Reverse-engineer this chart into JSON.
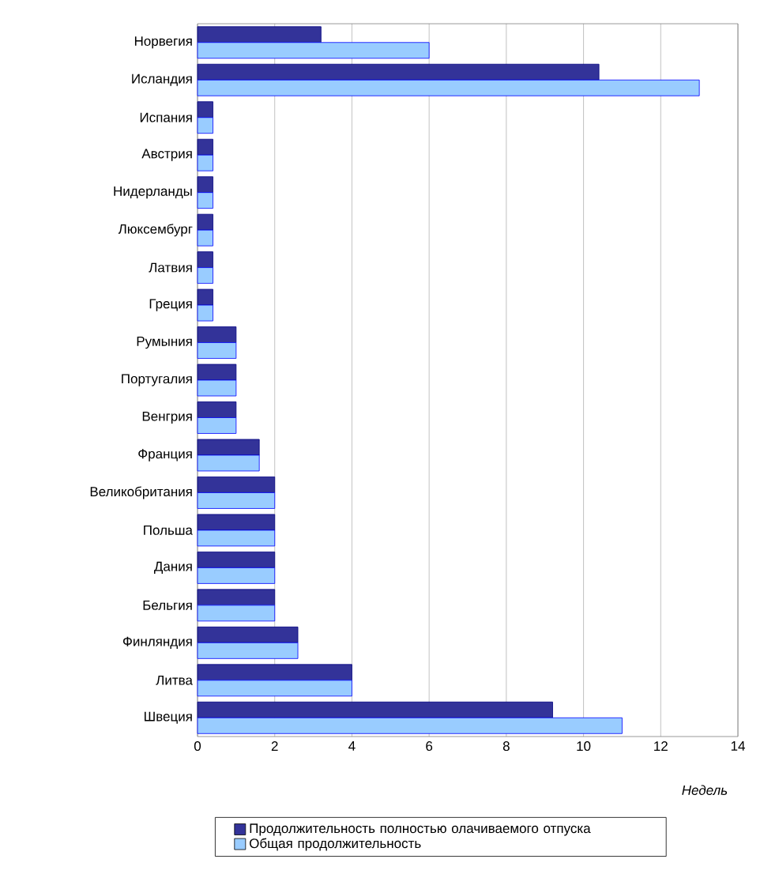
{
  "chart_data": {
    "type": "bar",
    "orientation": "horizontal",
    "xlabel": "Недель",
    "categories": [
      "Норвегия",
      "Исландия",
      "Испания",
      "Австрия",
      "Нидерланды",
      "Люксембург",
      "Латвия",
      "Греция",
      "Румыния",
      "Португалия",
      "Венгрия",
      "Франция",
      "Великобритания",
      "Польша",
      "Дания",
      "Бельгия",
      "Финляндия",
      "Литва",
      "Швеция"
    ],
    "series": [
      {
        "name": "Продолжительность полностью олачиваемого отпуска",
        "color": "#333399",
        "values": [
          3.2,
          10.4,
          0.4,
          0.4,
          0.4,
          0.4,
          0.4,
          0.4,
          1,
          1,
          1,
          1.6,
          2,
          2,
          2,
          2,
          2.6,
          4,
          9.2
        ]
      },
      {
        "name": "Общая продолжительность",
        "color": "#99ccff",
        "values": [
          6,
          13,
          0.4,
          0.4,
          0.4,
          0.4,
          0.4,
          0.4,
          1,
          1,
          1,
          1.6,
          2,
          2,
          2,
          2,
          2.6,
          4,
          11
        ]
      }
    ],
    "xlim": [
      0,
      14
    ],
    "xticks": [
      0,
      2,
      4,
      6,
      8,
      10,
      12,
      14
    ],
    "grid": "x",
    "legend": "bottom"
  }
}
